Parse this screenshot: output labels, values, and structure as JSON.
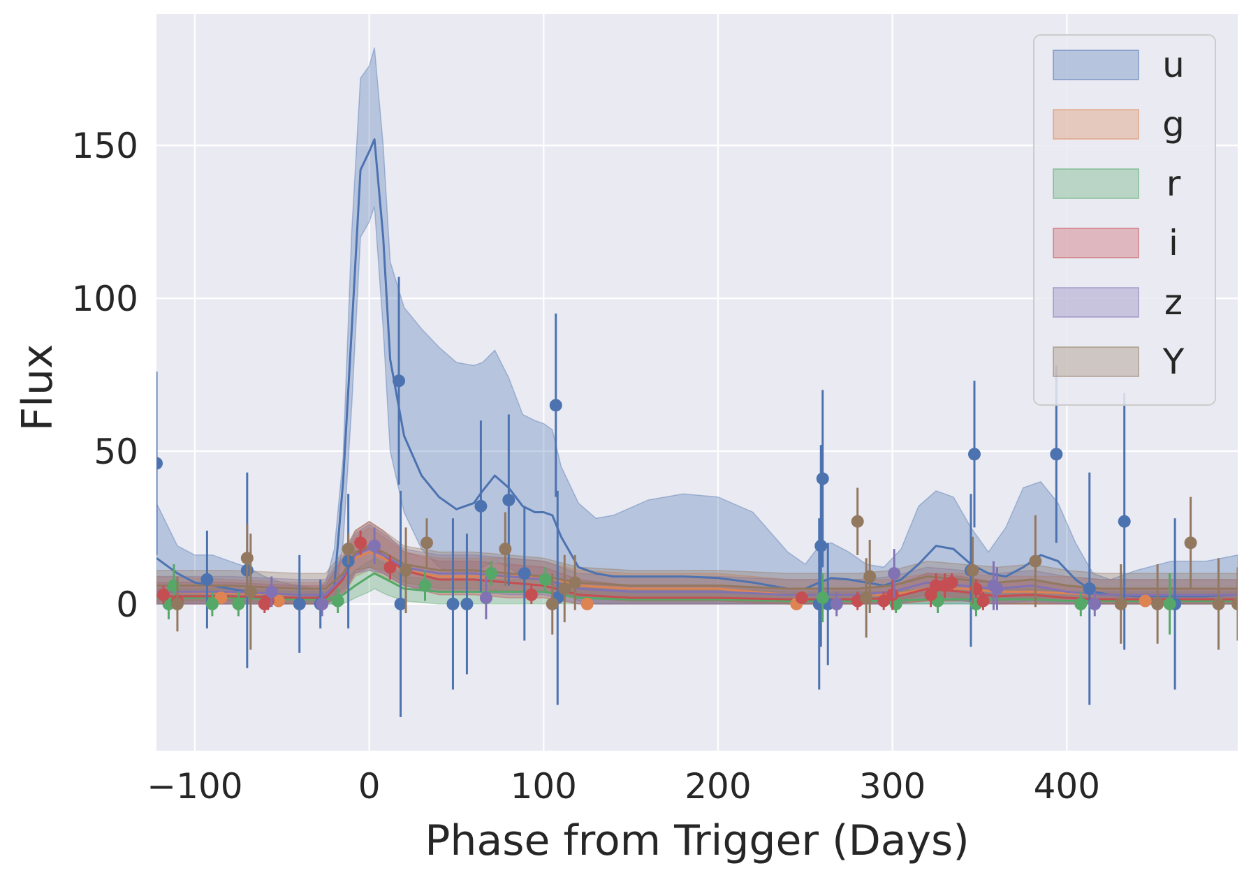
{
  "chart_data": {
    "type": "line",
    "title": "",
    "xlabel": "Phase from Trigger (Days)",
    "ylabel": "Flux",
    "xlim": [
      -122,
      498
    ],
    "ylim": [
      -48,
      193
    ],
    "xticks": [
      -100,
      0,
      100,
      200,
      300,
      400
    ],
    "yticks": [
      0,
      50,
      100,
      150
    ],
    "xtick_labels": [
      "−100",
      "0",
      "100",
      "200",
      "300",
      "400"
    ],
    "ytick_labels": [
      "0",
      "50",
      "100",
      "150"
    ],
    "grid": true,
    "legend_position": "top-right",
    "series": [
      {
        "name": "u",
        "color": "#4c72b0",
        "model_x": [
          -122,
          -110,
          -100,
          -90,
          -80,
          -70,
          -60,
          -50,
          -40,
          -30,
          -25,
          -20,
          -15,
          -10,
          -5,
          0,
          3,
          8,
          12,
          20,
          30,
          40,
          50,
          60,
          65,
          72,
          80,
          88,
          95,
          100,
          105,
          110,
          120,
          130,
          140,
          160,
          180,
          200,
          220,
          240,
          250,
          258,
          265,
          275,
          285,
          295,
          305,
          315,
          325,
          335,
          345,
          355,
          365,
          375,
          385,
          395,
          405,
          415,
          425,
          440,
          460,
          480,
          498
        ],
        "model_y": [
          15,
          10,
          7,
          6,
          5,
          4,
          3,
          2,
          2,
          2,
          3,
          6,
          40,
          90,
          142,
          148,
          152,
          120,
          80,
          55,
          42,
          35,
          31,
          33,
          37,
          42,
          38,
          32,
          30,
          30,
          29,
          22,
          12,
          10,
          9,
          9,
          9,
          8.5,
          7,
          5,
          5,
          7,
          8.5,
          8,
          7,
          6,
          8,
          13,
          19,
          18,
          13,
          10,
          9,
          12,
          16,
          14,
          8,
          4,
          3,
          2.5,
          2.5,
          2.5,
          3
        ],
        "band_lower": [
          0,
          0,
          0,
          0,
          0,
          0,
          0,
          0,
          0,
          0,
          0,
          0,
          20,
          65,
          120,
          125,
          130,
          90,
          50,
          30,
          18,
          12,
          10,
          10,
          12,
          14,
          12,
          9,
          8,
          8,
          6,
          5,
          1,
          0,
          0,
          0,
          0,
          0,
          0,
          0,
          0,
          0,
          0,
          0,
          0,
          0,
          0,
          0,
          0,
          0,
          0,
          0,
          0,
          0,
          0,
          0,
          0,
          0,
          0,
          0,
          0,
          0,
          0
        ],
        "band_upper": [
          33,
          19,
          16,
          16,
          14,
          12,
          9,
          7,
          6,
          5,
          7,
          18,
          48,
          122,
          172,
          176,
          182,
          150,
          112,
          97,
          90,
          84,
          79,
          78,
          79,
          83,
          74,
          62,
          60,
          59,
          57,
          45,
          33,
          28,
          29,
          34,
          36,
          35,
          30,
          17,
          13,
          19,
          20,
          17,
          13,
          12,
          18,
          32,
          37,
          35,
          25,
          17,
          25,
          38,
          40,
          33,
          20,
          10,
          8,
          11,
          14,
          14,
          16
        ],
        "points_x": [
          -122,
          -93,
          -70,
          -40,
          -28,
          -12,
          17,
          18,
          48,
          56,
          64,
          80,
          89,
          107,
          108,
          258,
          259,
          260,
          263,
          345,
          347,
          394,
          413,
          433,
          462
        ],
        "points_y": [
          46,
          8,
          11,
          0,
          0,
          14,
          73,
          0,
          0,
          0,
          32,
          34,
          10,
          65,
          2,
          0,
          19,
          41,
          0,
          11,
          49,
          49,
          5,
          27,
          0
        ],
        "points_err": [
          30,
          16,
          32,
          16,
          8,
          22,
          34,
          37,
          28,
          23,
          28,
          28,
          22,
          30,
          35,
          28,
          33,
          29,
          20,
          25,
          24,
          29,
          38,
          42,
          28
        ]
      },
      {
        "name": "g",
        "color": "#dd8452",
        "model_x": [
          -122,
          -80,
          -40,
          -25,
          -15,
          -8,
          0,
          8,
          20,
          40,
          60,
          80,
          100,
          120,
          150,
          200,
          240,
          260,
          280,
          300,
          320,
          340,
          360,
          380,
          400,
          420,
          460,
          498
        ],
        "model_y": [
          4,
          3.5,
          3,
          3,
          8,
          15,
          17,
          15,
          11,
          9,
          9,
          9,
          9,
          6,
          5,
          5,
          3,
          3,
          3,
          3,
          5,
          5,
          4,
          4,
          3.5,
          3,
          3,
          3
        ],
        "band_lower": [
          0,
          0,
          0,
          0,
          3,
          9,
          11,
          9,
          6,
          4,
          4,
          4,
          4,
          2,
          1,
          1,
          0,
          0,
          0,
          0,
          1,
          1,
          0,
          0,
          0,
          0,
          0,
          0
        ],
        "band_upper": [
          9,
          8,
          7,
          7,
          15,
          22,
          25,
          22,
          17,
          15,
          15,
          15,
          14,
          11,
          10,
          10,
          8,
          8,
          8,
          8,
          10,
          10,
          9,
          9,
          9,
          8,
          8,
          8
        ],
        "points_x": [
          -85,
          -52,
          125,
          245,
          445
        ],
        "points_y": [
          2,
          1,
          0,
          0,
          1
        ],
        "points_err": [
          1.5,
          1.5,
          1,
          1.2,
          1.5
        ]
      },
      {
        "name": "r",
        "color": "#55a868",
        "model_x": [
          -122,
          -80,
          -40,
          -25,
          -15,
          -8,
          0,
          3,
          10,
          20,
          40,
          60,
          80,
          100,
          120,
          150,
          200,
          240,
          260,
          280,
          300,
          320,
          340,
          360,
          380,
          400,
          420,
          460,
          498
        ],
        "model_y": [
          2,
          2,
          1.5,
          1.5,
          3,
          6,
          9,
          10,
          8,
          5,
          4,
          4,
          4,
          4,
          2,
          1.5,
          1.5,
          1,
          1,
          1,
          1,
          1.5,
          1.5,
          1.5,
          1.5,
          1,
          1,
          1,
          1
        ],
        "band_lower": [
          0,
          0,
          0,
          0,
          0,
          2,
          4,
          5,
          3,
          1,
          0,
          0,
          0,
          0,
          0,
          0,
          0,
          0,
          0,
          0,
          0,
          0,
          0,
          0,
          0,
          0,
          0,
          0,
          0
        ],
        "band_upper": [
          5,
          5,
          4,
          4,
          7,
          11,
          14,
          15,
          13,
          9,
          8,
          8,
          8,
          8,
          6,
          5,
          5,
          4,
          4,
          4,
          4,
          5,
          5,
          5,
          5,
          4,
          4,
          4,
          4
        ],
        "points_x": [
          -115,
          -112,
          -90,
          -75,
          -18,
          32,
          70,
          101,
          260,
          302,
          326,
          348,
          408,
          459
        ],
        "points_y": [
          0,
          6,
          0,
          0,
          1,
          6,
          10,
          8,
          2,
          0,
          1,
          0,
          0,
          0
        ],
        "points_err": [
          5,
          7,
          4,
          4,
          4,
          5,
          4,
          4,
          8,
          3,
          4,
          4,
          4,
          10
        ]
      },
      {
        "name": "i",
        "color": "#c44e52",
        "model_x": [
          -122,
          -80,
          -40,
          -25,
          -15,
          -8,
          0,
          8,
          20,
          40,
          60,
          80,
          100,
          120,
          150,
          200,
          240,
          260,
          280,
          300,
          320,
          340,
          360,
          380,
          400,
          420,
          460,
          498
        ],
        "model_y": [
          2.5,
          2.5,
          2,
          2,
          8,
          16,
          19,
          16,
          11,
          8,
          8,
          7,
          6,
          3,
          2,
          2,
          1.5,
          1.5,
          1.5,
          2,
          5,
          4,
          2.5,
          3,
          2,
          1.5,
          1.5,
          1.5
        ],
        "band_lower": [
          0,
          0,
          0,
          0,
          3,
          10,
          12,
          10,
          6,
          3,
          3,
          2,
          2,
          0,
          0,
          0,
          0,
          0,
          0,
          0,
          1,
          1,
          0,
          0,
          0,
          0,
          0,
          0
        ],
        "band_upper": [
          7,
          7,
          6,
          6,
          15,
          24,
          27,
          24,
          17,
          14,
          14,
          13,
          12,
          8,
          6,
          6,
          5,
          5,
          5,
          6,
          10,
          9,
          7,
          8,
          6,
          5,
          5,
          5
        ],
        "points_x": [
          -118,
          -110,
          -60,
          -58,
          -5,
          12,
          93,
          248,
          280,
          295,
          300,
          322,
          325,
          330,
          334,
          348,
          352
        ],
        "points_y": [
          3,
          1,
          0,
          1,
          20,
          12,
          3,
          2,
          1,
          1,
          3,
          3,
          6,
          6,
          7,
          5,
          1
        ],
        "points_err": [
          3,
          3,
          3,
          3,
          4,
          4,
          3,
          2,
          3,
          3,
          5,
          4,
          4,
          4,
          3,
          3,
          3
        ]
      },
      {
        "name": "z",
        "color": "#8172b3",
        "model_x": [
          -122,
          -80,
          -40,
          -25,
          -15,
          -8,
          0,
          8,
          20,
          40,
          60,
          80,
          100,
          120,
          150,
          200,
          240,
          260,
          280,
          300,
          320,
          340,
          360,
          380,
          400,
          420,
          460,
          498
        ],
        "model_y": [
          4,
          4,
          3,
          3,
          9,
          16,
          18,
          16,
          12,
          10,
          10,
          9,
          8,
          5,
          4,
          4,
          3,
          3,
          3,
          4,
          7,
          6,
          5,
          6,
          4,
          3,
          3,
          3
        ],
        "band_lower": [
          0,
          0,
          0,
          0,
          4,
          10,
          11,
          10,
          6,
          4,
          4,
          3,
          3,
          0,
          0,
          0,
          0,
          0,
          0,
          0,
          2,
          1,
          0,
          1,
          0,
          0,
          0,
          0
        ],
        "band_upper": [
          9,
          9,
          8,
          8,
          16,
          23,
          26,
          23,
          18,
          16,
          16,
          15,
          14,
          10,
          9,
          9,
          8,
          8,
          8,
          9,
          12,
          11,
          10,
          11,
          9,
          8,
          8,
          8
        ],
        "points_x": [
          -56,
          -27,
          3,
          67,
          268,
          301,
          358,
          360,
          416
        ],
        "points_y": [
          4,
          0,
          19,
          2,
          0,
          10,
          6,
          5,
          0
        ],
        "points_err": [
          5,
          4,
          6,
          7,
          4,
          8,
          8,
          7,
          4
        ]
      },
      {
        "name": "Y",
        "color": "#937860",
        "model_x": [
          -122,
          -80,
          -40,
          -25,
          -15,
          -8,
          0,
          8,
          20,
          40,
          60,
          80,
          100,
          120,
          150,
          200,
          240,
          260,
          280,
          300,
          320,
          340,
          360,
          380,
          400,
          420,
          460,
          498
        ],
        "model_y": [
          6,
          6,
          5,
          5,
          10,
          17,
          19,
          17,
          13,
          11,
          11,
          10,
          9,
          7,
          6,
          6,
          5,
          5,
          5,
          6,
          9,
          8,
          7,
          8,
          6,
          5,
          5,
          5
        ],
        "band_lower": [
          1,
          1,
          0,
          0,
          5,
          11,
          12,
          11,
          7,
          5,
          5,
          4,
          4,
          2,
          1,
          1,
          0,
          0,
          0,
          1,
          3,
          2,
          1,
          2,
          1,
          0,
          0,
          0
        ],
        "band_upper": [
          11,
          11,
          10,
          10,
          17,
          24,
          27,
          24,
          19,
          17,
          17,
          16,
          15,
          12,
          11,
          11,
          10,
          10,
          10,
          11,
          14,
          13,
          12,
          13,
          11,
          10,
          10,
          10
        ],
        "points_x": [
          -110,
          -70,
          -68,
          -12,
          21,
          33,
          78,
          105,
          112,
          118,
          280,
          285,
          287,
          346,
          382,
          431,
          452,
          471,
          487,
          498
        ],
        "points_y": [
          0,
          15,
          4,
          18,
          11,
          20,
          18,
          0,
          5,
          7,
          27,
          2,
          9,
          11,
          14,
          0,
          0,
          20,
          0,
          0
        ],
        "points_err": [
          9,
          11,
          19,
          5,
          14,
          8,
          12,
          10,
          11,
          9,
          11,
          13,
          12,
          11,
          15,
          13,
          13,
          15,
          15,
          12
        ]
      }
    ]
  }
}
